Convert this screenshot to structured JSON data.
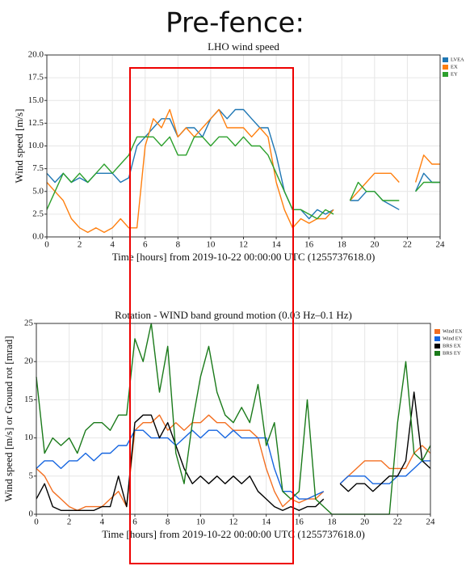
{
  "header": {
    "title": "Pre-fence:"
  },
  "chart_data": [
    {
      "type": "line",
      "title": "LHO wind speed",
      "xlabel": "Time [hours] from 2019-10-22 00:00:00 UTC (1255737618.0)",
      "ylabel": "Wind speed [m/s]",
      "grid": true,
      "x": [
        0,
        0.5,
        1,
        1.5,
        2,
        2.5,
        3,
        3.5,
        4,
        4.5,
        5,
        5.5,
        6,
        6.5,
        7,
        7.5,
        8,
        8.5,
        9,
        9.5,
        10,
        10.5,
        11,
        11.5,
        12,
        12.5,
        13,
        13.5,
        14,
        14.5,
        15,
        15.5,
        16,
        16.5,
        17,
        17.5,
        18,
        18.5,
        19,
        19.5,
        20,
        20.5,
        21,
        21.5,
        22,
        22.5,
        23,
        23.5,
        24
      ],
      "xlim": [
        0,
        24
      ],
      "xticks": [
        0,
        2,
        4,
        6,
        8,
        10,
        12,
        14,
        16,
        18,
        20,
        22,
        24
      ],
      "ylim": [
        0,
        20
      ],
      "yticks": [
        {
          "value": 0,
          "label": "0.0"
        },
        {
          "value": 2.5,
          "label": "2.5"
        },
        {
          "value": 5,
          "label": "5.0"
        },
        {
          "value": 7.5,
          "label": "7.5"
        },
        {
          "value": 10,
          "label": "10.0"
        },
        {
          "value": 12.5,
          "label": "12.5"
        },
        {
          "value": 15,
          "label": "15.0"
        },
        {
          "value": 17.5,
          "label": "17.5"
        },
        {
          "value": 20,
          "label": "20.0"
        }
      ],
      "series": [
        {
          "name": "LVEA",
          "color": "#1f77b4",
          "values": [
            7,
            6,
            7,
            6,
            6.5,
            6,
            7,
            7,
            7,
            6,
            6.5,
            10,
            11,
            12,
            13,
            13,
            11,
            12,
            12,
            11,
            13,
            14,
            13,
            14,
            14,
            13,
            12,
            12,
            9,
            5,
            3,
            3,
            2,
            3,
            2.5,
            3,
            null,
            4,
            4,
            5,
            5,
            4,
            3.5,
            3,
            null,
            5,
            7,
            6,
            6
          ]
        },
        {
          "name": "EX",
          "color": "#ff7f0e",
          "values": [
            6,
            5,
            4,
            2,
            1,
            0.5,
            1,
            0.5,
            1,
            2,
            1,
            1,
            10,
            13,
            12,
            14,
            11,
            12,
            11,
            12,
            13,
            14,
            12,
            12,
            12,
            11,
            12,
            11,
            6,
            3,
            1,
            2,
            1.5,
            2,
            2,
            3,
            null,
            4,
            5,
            6,
            7,
            7,
            7,
            6,
            null,
            6,
            9,
            8,
            8
          ]
        },
        {
          "name": "EY",
          "color": "#2ca02c",
          "values": [
            3,
            5,
            7,
            6,
            7,
            6,
            7,
            8,
            7,
            8,
            9,
            11,
            11,
            11,
            10,
            11,
            9,
            9,
            11,
            11,
            10,
            11,
            11,
            10,
            11,
            10,
            10,
            9,
            7,
            5,
            3,
            3,
            2.5,
            2,
            3,
            2.5,
            null,
            4,
            6,
            5,
            5,
            4,
            4,
            4,
            null,
            5,
            6,
            6,
            6
          ]
        }
      ]
    },
    {
      "type": "line",
      "title": "Rotation - WIND band ground motion (0.03 Hz–0.1 Hz)",
      "xlabel": "Time [hours] from 2019-10-22 00:00:00 UTC (1255737618.0)",
      "ylabel": "Wind speed [m/s] or Ground rot [mrad]",
      "grid": true,
      "x": [
        0,
        0.5,
        1,
        1.5,
        2,
        2.5,
        3,
        3.5,
        4,
        4.5,
        5,
        5.5,
        6,
        6.5,
        7,
        7.5,
        8,
        8.5,
        9,
        9.5,
        10,
        10.5,
        11,
        11.5,
        12,
        12.5,
        13,
        13.5,
        14,
        14.5,
        15,
        15.5,
        16,
        16.5,
        17,
        17.5,
        18,
        18.5,
        19,
        19.5,
        20,
        20.5,
        21,
        21.5,
        22,
        22.5,
        23,
        23.5,
        24
      ],
      "xlim": [
        0,
        24
      ],
      "xticks": [
        0,
        2,
        4,
        6,
        8,
        10,
        12,
        14,
        16,
        18,
        20,
        22,
        24
      ],
      "ylim": [
        0,
        25
      ],
      "yticks": [
        0,
        5,
        10,
        15,
        20,
        25
      ],
      "series": [
        {
          "name": "Wind EX",
          "color": "#f36f21",
          "values": [
            6,
            5,
            3,
            2,
            1,
            0.5,
            1,
            1,
            1,
            2,
            3,
            1,
            11,
            12,
            12,
            13,
            11,
            12,
            11,
            12,
            12,
            13,
            12,
            12,
            11,
            11,
            11,
            10,
            6,
            3,
            1,
            2,
            1.5,
            2,
            2,
            3,
            null,
            4,
            5,
            6,
            7,
            7,
            7,
            6,
            6,
            6,
            8,
            9,
            8
          ]
        },
        {
          "name": "Wind EY",
          "color": "#1565e0",
          "values": [
            6,
            7,
            7,
            6,
            7,
            7,
            8,
            7,
            8,
            8,
            9,
            9,
            11,
            11,
            10,
            10,
            10,
            9,
            10,
            11,
            10,
            11,
            11,
            10,
            11,
            10,
            10,
            10,
            10,
            6,
            3,
            3,
            2,
            2,
            2.5,
            3,
            null,
            4,
            5,
            5,
            5,
            4,
            4,
            4,
            5,
            5,
            6,
            7,
            7
          ]
        },
        {
          "name": "BRS EX",
          "color": "#000000",
          "values": [
            2,
            4,
            1,
            0.5,
            0.5,
            0.5,
            0.5,
            0.5,
            1,
            1,
            5,
            1,
            12,
            13,
            13,
            10,
            12,
            9,
            6,
            4,
            5,
            4,
            5,
            4,
            5,
            4,
            5,
            3,
            2,
            1,
            0.5,
            1,
            0.5,
            1,
            1,
            2,
            null,
            4,
            3,
            4,
            4,
            3,
            4,
            5,
            5,
            7,
            16,
            7,
            6
          ]
        },
        {
          "name": "BRS EY",
          "color": "#1a7a1a",
          "values": [
            18,
            8,
            10,
            9,
            10,
            8,
            11,
            12,
            12,
            11,
            13,
            13,
            23,
            20,
            25,
            16,
            22,
            8,
            4,
            12,
            18,
            22,
            16,
            13,
            12,
            14,
            12,
            17,
            9,
            12,
            3,
            2,
            3,
            15,
            2,
            1,
            0,
            0,
            0,
            0,
            0,
            0,
            0,
            0,
            12,
            20,
            8,
            7,
            9
          ]
        }
      ]
    }
  ]
}
